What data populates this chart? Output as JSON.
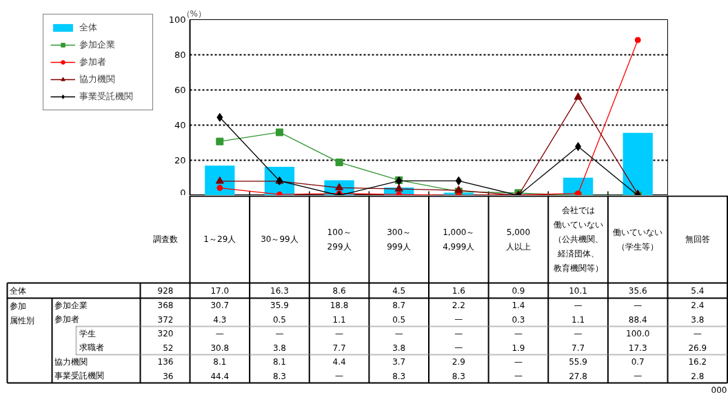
{
  "chart_data": {
    "type": "bar",
    "ylabel": "（%）",
    "categories": [
      "調査数",
      "1～29人",
      "30～99人",
      "100～\n299人",
      "300～\n999人",
      "1,000～\n4,999人",
      "5,000\n人以上",
      "会社では働いていない（公共機関、経済団体、教育機関等）",
      "働いていない（学生等）",
      "無回答"
    ],
    "series": [
      {
        "name": "全体",
        "color": "#00ccff",
        "values": [
          null,
          17.0,
          16.3,
          8.6,
          4.5,
          1.6,
          0.9,
          10.1,
          35.6,
          null
        ],
        "value_labels": [
          "928",
          "17.0",
          "16.3",
          "8.6",
          "4.5",
          "1.6",
          "0.9",
          "10.1",
          "35.6",
          "5.4"
        ]
      },
      {
        "name": "参加企業",
        "type": "line",
        "color": "#339933",
        "marker": "square",
        "values": [
          null,
          30.7,
          35.9,
          18.8,
          8.7,
          2.2,
          1.4,
          0,
          0,
          null
        ],
        "value_labels": [
          "368",
          "30.7",
          "35.9",
          "18.8",
          "8.7",
          "2.2",
          "1.4",
          "—",
          "—",
          "2.4"
        ]
      },
      {
        "name": "参加者",
        "type": "line",
        "color": "#ff0000",
        "marker": "circle",
        "values": [
          null,
          4.3,
          0.5,
          1.1,
          0.5,
          0,
          0.3,
          1.1,
          88.4,
          null
        ],
        "value_labels": [
          "372",
          "4.3",
          "0.5",
          "1.1",
          "0.5",
          "—",
          "0.3",
          "1.1",
          "88.4",
          "3.8"
        ]
      },
      {
        "name": "学生",
        "type": "other",
        "values": [
          null,
          null,
          null,
          null,
          null,
          null,
          null,
          null,
          null,
          null
        ],
        "value_labels": [
          "320",
          "—",
          "—",
          "—",
          "—",
          "—",
          "—",
          "—",
          "100.0",
          "—"
        ]
      },
      {
        "name": "求職者",
        "type": "other",
        "values": [
          null,
          null,
          null,
          null,
          null,
          null,
          null,
          null,
          null,
          null
        ],
        "value_labels": [
          "52",
          "30.8",
          "3.8",
          "7.7",
          "3.8",
          "—",
          "1.9",
          "7.7",
          "17.3",
          "26.9"
        ]
      },
      {
        "name": "協力機関",
        "type": "line",
        "color": "#800000",
        "marker": "triangle",
        "values": [
          null,
          8.1,
          8.1,
          4.4,
          3.7,
          2.9,
          0,
          55.9,
          0.7,
          null
        ],
        "value_labels": [
          "136",
          "8.1",
          "8.1",
          "4.4",
          "3.7",
          "2.9",
          "—",
          "55.9",
          "0.7",
          "16.2"
        ]
      },
      {
        "name": "事業受託機関",
        "type": "line",
        "color": "#000000",
        "marker": "diamond",
        "values": [
          null,
          44.4,
          8.3,
          0,
          8.3,
          8.3,
          0,
          27.8,
          0,
          null
        ],
        "value_labels": [
          "36",
          "44.4",
          "8.3",
          "—",
          "8.3",
          "8.3",
          "—",
          "27.8",
          "—",
          "2.8"
        ]
      }
    ],
    "ylim": [
      0,
      100
    ],
    "yticks": [
      0,
      20,
      40,
      60,
      80,
      100
    ],
    "grid": "y",
    "legend": "top left",
    "annotations": [
      "参加属性別",
      "000"
    ]
  }
}
